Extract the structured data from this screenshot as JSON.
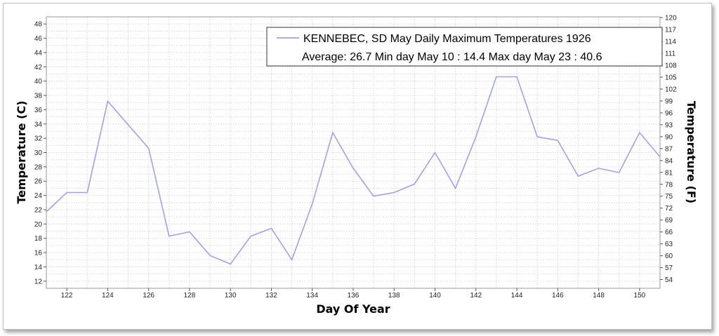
{
  "chart_data": {
    "type": "line",
    "title": "",
    "xlabel": "Day Of Year",
    "ylabel": "Temperature (C)",
    "ylabel_right": "Temperature (F)",
    "xlim": [
      121,
      151
    ],
    "ylim": [
      11,
      49
    ],
    "ylim_right": [
      51.8,
      120.2
    ],
    "x_ticks": [
      122,
      124,
      126,
      128,
      130,
      132,
      134,
      136,
      138,
      140,
      142,
      144,
      146,
      148,
      150
    ],
    "y_ticks": [
      12,
      14,
      16,
      18,
      20,
      22,
      24,
      26,
      28,
      30,
      32,
      34,
      36,
      38,
      40,
      42,
      44,
      46,
      48
    ],
    "y_ticks_right": [
      54,
      57,
      60,
      63,
      66,
      69,
      72,
      75,
      78,
      81,
      84,
      87,
      90,
      93,
      96,
      99,
      102,
      105,
      108,
      111,
      114,
      117,
      120
    ],
    "grid": true,
    "legend_position": "top-right",
    "legend": {
      "line1": "KENNEBEC, SD  May  Daily Maximum Temperatures 1926",
      "line2": "Average: 26.7  Min day May 10 : 14.4  Max day May 23 : 40.6"
    },
    "series": [
      {
        "name": "KENNEBEC, SD  May  Daily Maximum Temperatures 1926",
        "color": "#a0a0f0",
        "x": [
          121,
          122,
          123,
          124,
          125,
          126,
          127,
          128,
          129,
          130,
          131,
          132,
          133,
          134,
          135,
          136,
          137,
          138,
          139,
          140,
          141,
          142,
          143,
          144,
          145,
          146,
          147,
          148,
          149,
          150,
          151
        ],
        "y": [
          21.7,
          24.4,
          24.4,
          37.2,
          33.9,
          30.6,
          18.3,
          18.9,
          15.6,
          14.4,
          18.3,
          19.4,
          15.0,
          22.8,
          32.8,
          27.8,
          23.9,
          24.4,
          25.6,
          30.0,
          25.0,
          32.2,
          40.6,
          40.6,
          32.2,
          31.7,
          26.7,
          27.8,
          27.2,
          32.8,
          29.4
        ]
      }
    ]
  }
}
